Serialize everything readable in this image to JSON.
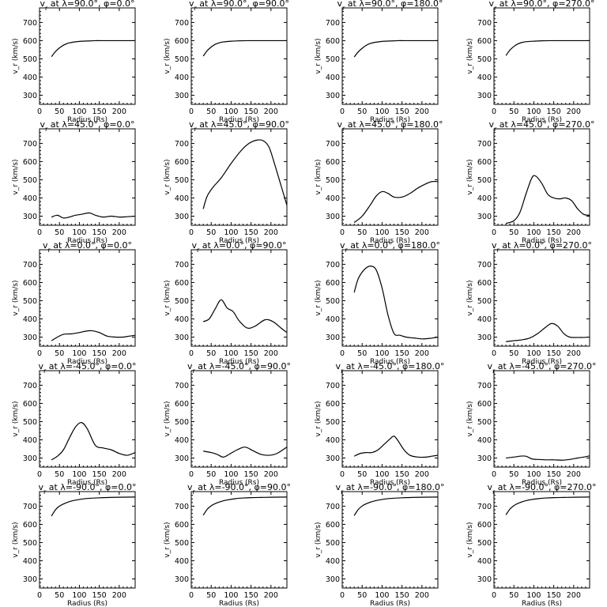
{
  "chart_data": [
    {
      "type": "line",
      "title": "v_r at λ=90.0°, φ=0.0°",
      "title_parts": {
        "v": "v",
        "sub": "r",
        "mid1": " at ",
        "lam_sym": "λ",
        "lam": "=90.0°, ",
        "phi_sym": "φ",
        "phi": "=0.0°"
      },
      "xlabel": "Radius (Rs)",
      "ylabel": "v_r (km/s)",
      "xlim": [
        0,
        240
      ],
      "ylim": [
        250,
        780
      ],
      "xticks": [
        0,
        50,
        100,
        150,
        200
      ],
      "yticks": [
        300,
        400,
        500,
        600,
        700
      ],
      "x": [
        30,
        40,
        50,
        60,
        70,
        80,
        100,
        120,
        140,
        160,
        180,
        200,
        240
      ],
      "y": [
        512,
        540,
        560,
        575,
        585,
        590,
        596,
        598,
        600,
        600,
        600,
        600,
        600
      ]
    },
    {
      "type": "line",
      "title": "v_r at λ=90.0°, φ=90.0°",
      "title_parts": {
        "v": "v",
        "sub": "r",
        "mid1": " at ",
        "lam_sym": "λ",
        "lam": "=90.0°, ",
        "phi_sym": "φ",
        "phi": "=90.0°"
      },
      "xlabel": "Radius (Rs)",
      "ylabel": "v_r (km/s)",
      "xlim": [
        0,
        240
      ],
      "ylim": [
        250,
        780
      ],
      "xticks": [
        0,
        50,
        100,
        150,
        200
      ],
      "yticks": [
        300,
        400,
        500,
        600,
        700
      ],
      "x": [
        30,
        40,
        50,
        60,
        70,
        80,
        100,
        120,
        140,
        160,
        180,
        200,
        240
      ],
      "y": [
        515,
        545,
        565,
        580,
        588,
        593,
        597,
        599,
        600,
        600,
        600,
        600,
        600
      ]
    },
    {
      "type": "line",
      "title": "v_r at λ=90.0°, φ=180.0°",
      "title_parts": {
        "v": "v",
        "sub": "r",
        "mid1": " at ",
        "lam_sym": "λ",
        "lam": "=90.0°, ",
        "phi_sym": "φ",
        "phi": "=180.0°"
      },
      "xlabel": "Radius (Rs)",
      "ylabel": "v_r (km/s)",
      "xlim": [
        0,
        240
      ],
      "ylim": [
        250,
        780
      ],
      "xticks": [
        0,
        50,
        100,
        150,
        200
      ],
      "yticks": [
        300,
        400,
        500,
        600,
        700
      ],
      "x": [
        30,
        40,
        50,
        60,
        70,
        80,
        100,
        120,
        140,
        160,
        180,
        200,
        240
      ],
      "y": [
        510,
        538,
        558,
        574,
        584,
        590,
        596,
        598,
        600,
        600,
        600,
        600,
        600
      ]
    },
    {
      "type": "line",
      "title": "v_r at λ=90.0°, φ=270.0°",
      "title_parts": {
        "v": "v",
        "sub": "r",
        "mid1": " at ",
        "lam_sym": "λ",
        "lam": "=90.0°, ",
        "phi_sym": "φ",
        "phi": "=270.0°"
      },
      "xlabel": "Radius (Rs)",
      "ylabel": "v_r (km/s)",
      "xlim": [
        0,
        240
      ],
      "ylim": [
        250,
        780
      ],
      "xticks": [
        0,
        50,
        100,
        150,
        200
      ],
      "yticks": [
        300,
        400,
        500,
        600,
        700
      ],
      "x": [
        30,
        40,
        50,
        60,
        70,
        80,
        100,
        120,
        140,
        160,
        180,
        200,
        240
      ],
      "y": [
        518,
        548,
        568,
        582,
        590,
        594,
        597,
        599,
        600,
        600,
        600,
        600,
        600
      ]
    },
    {
      "type": "line",
      "title": "v_r at λ=45.0°, φ=0.0°",
      "title_parts": {
        "v": "v",
        "sub": "r",
        "mid1": " at ",
        "lam_sym": "λ",
        "lam": "=45.0°, ",
        "phi_sym": "φ",
        "phi": "=0.0°"
      },
      "xlabel": "Radius (Rs)",
      "ylabel": "v_r (km/s)",
      "xlim": [
        0,
        240
      ],
      "ylim": [
        250,
        780
      ],
      "xticks": [
        0,
        50,
        100,
        150,
        200
      ],
      "yticks": [
        300,
        400,
        500,
        600,
        700
      ],
      "x": [
        30,
        45,
        60,
        75,
        90,
        105,
        125,
        140,
        160,
        180,
        200,
        220,
        240
      ],
      "y": [
        295,
        305,
        290,
        295,
        305,
        310,
        318,
        305,
        295,
        300,
        295,
        297,
        300
      ]
    },
    {
      "type": "line",
      "title": "v_r at λ=45.0°, φ=90.0°",
      "title_parts": {
        "v": "v",
        "sub": "r",
        "mid1": " at ",
        "lam_sym": "λ",
        "lam": "=45.0°, ",
        "phi_sym": "φ",
        "phi": "=90.0°"
      },
      "xlabel": "Radius (Rs)",
      "ylabel": "v_r (km/s)",
      "xlim": [
        0,
        240
      ],
      "ylim": [
        250,
        780
      ],
      "xticks": [
        0,
        50,
        100,
        150,
        200
      ],
      "yticks": [
        300,
        400,
        500,
        600,
        700
      ],
      "x": [
        30,
        40,
        55,
        75,
        100,
        125,
        145,
        165,
        180,
        195,
        210,
        225,
        240
      ],
      "y": [
        340,
        410,
        460,
        510,
        590,
        660,
        700,
        718,
        715,
        680,
        580,
        470,
        360
      ]
    },
    {
      "type": "line",
      "title": "v_r at λ=45.0°, φ=180.0°",
      "title_parts": {
        "v": "v",
        "sub": "r",
        "mid1": " at ",
        "lam_sym": "λ",
        "lam": "=45.0°, ",
        "phi_sym": "φ",
        "phi": "=180.0°"
      },
      "xlabel": "Radius (Rs)",
      "ylabel": "v_r (km/s)",
      "xlim": [
        0,
        240
      ],
      "ylim": [
        250,
        780
      ],
      "xticks": [
        0,
        50,
        100,
        150,
        200
      ],
      "yticks": [
        300,
        400,
        500,
        600,
        700
      ],
      "x": [
        30,
        50,
        70,
        85,
        100,
        115,
        130,
        150,
        170,
        190,
        210,
        225,
        240
      ],
      "y": [
        265,
        300,
        360,
        410,
        435,
        425,
        405,
        405,
        425,
        455,
        478,
        490,
        490
      ]
    },
    {
      "type": "line",
      "title": "v_r at λ=45.0°, φ=270.0°",
      "title_parts": {
        "v": "v",
        "sub": "r",
        "mid1": " at ",
        "lam_sym": "λ",
        "lam": "=45.0°, ",
        "phi_sym": "φ",
        "phi": "=270.0°"
      },
      "xlabel": "Radius (Rs)",
      "ylabel": "v_r (km/s)",
      "xlim": [
        0,
        240
      ],
      "ylim": [
        250,
        780
      ],
      "xticks": [
        0,
        50,
        100,
        150,
        200
      ],
      "yticks": [
        300,
        400,
        500,
        600,
        700
      ],
      "x": [
        30,
        50,
        65,
        80,
        95,
        105,
        120,
        135,
        150,
        165,
        180,
        195,
        210,
        225,
        240
      ],
      "y": [
        260,
        275,
        320,
        420,
        510,
        520,
        480,
        420,
        400,
        395,
        400,
        385,
        340,
        310,
        305
      ]
    },
    {
      "type": "line",
      "title": "v_r at λ=0.0°, φ=0.0°",
      "title_parts": {
        "v": "v",
        "sub": "r",
        "mid1": " at ",
        "lam_sym": "λ",
        "lam": "=0.0°, ",
        "phi_sym": "φ",
        "phi": "=0.0°"
      },
      "xlabel": "Radius (Rs)",
      "ylabel": "v_r (km/s)",
      "xlim": [
        0,
        240
      ],
      "ylim": [
        250,
        780
      ],
      "xticks": [
        0,
        50,
        100,
        150,
        200
      ],
      "yticks": [
        300,
        400,
        500,
        600,
        700
      ],
      "x": [
        30,
        45,
        60,
        80,
        100,
        115,
        130,
        150,
        170,
        190,
        210,
        225,
        240
      ],
      "y": [
        280,
        300,
        315,
        318,
        325,
        332,
        335,
        325,
        305,
        300,
        300,
        305,
        310
      ]
    },
    {
      "type": "line",
      "title": "v_r at λ=0.0°, φ=90.0°",
      "title_parts": {
        "v": "v",
        "sub": "r",
        "mid1": " at ",
        "lam_sym": "λ",
        "lam": "=0.0°, ",
        "phi_sym": "φ",
        "phi": "=90.0°"
      },
      "xlabel": "Radius (Rs)",
      "ylabel": "v_r (km/s)",
      "xlim": [
        0,
        240
      ],
      "ylim": [
        250,
        780
      ],
      "xticks": [
        0,
        50,
        100,
        150,
        200
      ],
      "yticks": [
        300,
        400,
        500,
        600,
        700
      ],
      "x": [
        30,
        45,
        60,
        75,
        90,
        105,
        120,
        140,
        160,
        185,
        205,
        225,
        240
      ],
      "y": [
        385,
        400,
        455,
        505,
        460,
        440,
        390,
        350,
        360,
        395,
        385,
        350,
        325
      ]
    },
    {
      "type": "line",
      "title": "v_r at λ=0.0°, φ=180.0°",
      "title_parts": {
        "v": "v",
        "sub": "r",
        "mid1": " at ",
        "lam_sym": "λ",
        "lam": "=0.0°, ",
        "phi_sym": "φ",
        "phi": "=180.0°"
      },
      "xlabel": "Radius (Rs)",
      "ylabel": "v_r (km/s)",
      "xlim": [
        0,
        240
      ],
      "ylim": [
        250,
        780
      ],
      "xticks": [
        0,
        50,
        100,
        150,
        200
      ],
      "yticks": [
        300,
        400,
        500,
        600,
        700
      ],
      "x": [
        30,
        40,
        55,
        70,
        85,
        100,
        115,
        130,
        145,
        160,
        180,
        200,
        220,
        240
      ],
      "y": [
        545,
        620,
        670,
        690,
        670,
        570,
        420,
        320,
        310,
        300,
        295,
        290,
        293,
        300
      ]
    },
    {
      "type": "line",
      "title": "v_r at λ=0.0°, φ=270.0°",
      "title_parts": {
        "v": "v",
        "sub": "r",
        "mid1": " at ",
        "lam_sym": "λ",
        "lam": "=0.0°, ",
        "phi_sym": "φ",
        "phi": "=270.0°"
      },
      "xlabel": "Radius (Rs)",
      "ylabel": "v_r (km/s)",
      "xlim": [
        0,
        240
      ],
      "ylim": [
        250,
        780
      ],
      "xticks": [
        0,
        50,
        100,
        150,
        200
      ],
      "yticks": [
        300,
        400,
        500,
        600,
        700
      ],
      "x": [
        30,
        50,
        70,
        90,
        110,
        130,
        145,
        160,
        175,
        190,
        210,
        225,
        240
      ],
      "y": [
        275,
        280,
        285,
        295,
        320,
        355,
        375,
        360,
        320,
        300,
        298,
        298,
        300
      ]
    },
    {
      "type": "line",
      "title": "v_r at λ=-45.0°, φ=0.0°",
      "title_parts": {
        "v": "v",
        "sub": "r",
        "mid1": " at ",
        "lam_sym": "λ",
        "lam": "=-45.0°, ",
        "phi_sym": "φ",
        "phi": "=0.0°"
      },
      "xlabel": "Radius (Rs)",
      "ylabel": "v_r (km/s)",
      "xlim": [
        0,
        240
      ],
      "ylim": [
        250,
        780
      ],
      "xticks": [
        0,
        50,
        100,
        150,
        200
      ],
      "yticks": [
        300,
        400,
        500,
        600,
        700
      ],
      "x": [
        30,
        45,
        60,
        75,
        90,
        105,
        120,
        140,
        160,
        180,
        200,
        220,
        240
      ],
      "y": [
        290,
        310,
        345,
        410,
        470,
        495,
        460,
        370,
        355,
        345,
        325,
        315,
        330
      ]
    },
    {
      "type": "line",
      "title": "v_r at λ=-45.0°, φ=90.0°",
      "title_parts": {
        "v": "v",
        "sub": "r",
        "mid1": " at ",
        "lam_sym": "λ",
        "lam": "=-45.0°, ",
        "phi_sym": "φ",
        "phi": "=90.0°"
      },
      "xlabel": "Radius (Rs)",
      "ylabel": "v_r (km/s)",
      "xlim": [
        0,
        240
      ],
      "ylim": [
        250,
        780
      ],
      "xticks": [
        0,
        50,
        100,
        150,
        200
      ],
      "yticks": [
        300,
        400,
        500,
        600,
        700
      ],
      "x": [
        30,
        50,
        65,
        80,
        95,
        115,
        135,
        155,
        175,
        195,
        215,
        240
      ],
      "y": [
        338,
        330,
        320,
        305,
        320,
        345,
        360,
        340,
        320,
        315,
        325,
        360
      ]
    },
    {
      "type": "line",
      "title": "v_r at λ=-45.0°, φ=180.0°",
      "title_parts": {
        "v": "v",
        "sub": "r",
        "mid1": " at ",
        "lam_sym": "λ",
        "lam": "=-45.0°, ",
        "phi_sym": "φ",
        "phi": "=180.0°"
      },
      "xlabel": "Radius (Rs)",
      "ylabel": "v_r (km/s)",
      "xlim": [
        0,
        240
      ],
      "ylim": [
        250,
        780
      ],
      "xticks": [
        0,
        50,
        100,
        150,
        200
      ],
      "yticks": [
        300,
        400,
        500,
        600,
        700
      ],
      "x": [
        30,
        45,
        60,
        75,
        90,
        105,
        120,
        130,
        140,
        155,
        170,
        190,
        210,
        225,
        240
      ],
      "y": [
        310,
        325,
        330,
        330,
        345,
        375,
        405,
        420,
        395,
        345,
        315,
        305,
        305,
        310,
        315
      ]
    },
    {
      "type": "line",
      "title": "v_r at λ=-45.0°, φ=270.0°",
      "title_parts": {
        "v": "v",
        "sub": "r",
        "mid1": " at ",
        "lam_sym": "λ",
        "lam": "=-45.0°, ",
        "phi_sym": "φ",
        "phi": "=270.0°"
      },
      "xlabel": "Radius (Rs)",
      "ylabel": "v_r (km/s)",
      "xlim": [
        0,
        240
      ],
      "ylim": [
        250,
        780
      ],
      "xticks": [
        0,
        50,
        100,
        150,
        200
      ],
      "yticks": [
        300,
        400,
        500,
        600,
        700
      ],
      "x": [
        30,
        50,
        65,
        80,
        95,
        110,
        130,
        150,
        170,
        190,
        210,
        225,
        240
      ],
      "y": [
        300,
        305,
        310,
        310,
        295,
        292,
        290,
        290,
        288,
        292,
        300,
        305,
        312
      ]
    },
    {
      "type": "line",
      "title": "v_r at λ=-90.0°, φ=0.0°",
      "title_parts": {
        "v": "v",
        "sub": "r",
        "mid1": " at ",
        "lam_sym": "λ",
        "lam": "=-90.0°, ",
        "phi_sym": "φ",
        "phi": "=0.0°"
      },
      "xlabel": "Radius (Rs)",
      "ylabel": "v_r (km/s)",
      "xlim": [
        0,
        240
      ],
      "ylim": [
        250,
        780
      ],
      "xticks": [
        0,
        50,
        100,
        150,
        200
      ],
      "yticks": [
        300,
        400,
        500,
        600,
        700
      ],
      "x": [
        30,
        40,
        50,
        60,
        75,
        90,
        110,
        130,
        150,
        175,
        200,
        240
      ],
      "y": [
        645,
        680,
        700,
        712,
        725,
        733,
        740,
        744,
        746,
        748,
        749,
        750
      ]
    },
    {
      "type": "line",
      "title": "v_r at λ=-90.0°, φ=90.0°",
      "title_parts": {
        "v": "v",
        "sub": "r",
        "mid1": " at ",
        "lam_sym": "λ",
        "lam": "=-90.0°, ",
        "phi_sym": "φ",
        "phi": "=90.0°"
      },
      "xlabel": "Radius (Rs)",
      "ylabel": "v_r (km/s)",
      "xlim": [
        0,
        240
      ],
      "ylim": [
        250,
        780
      ],
      "xticks": [
        0,
        50,
        100,
        150,
        200
      ],
      "yticks": [
        300,
        400,
        500,
        600,
        700
      ],
      "x": [
        30,
        40,
        50,
        60,
        75,
        90,
        110,
        130,
        150,
        175,
        200,
        240
      ],
      "y": [
        650,
        683,
        702,
        714,
        726,
        734,
        741,
        745,
        747,
        748,
        749,
        750
      ]
    },
    {
      "type": "line",
      "title": "v_r at λ=-90.0°, φ=180.0°",
      "title_parts": {
        "v": "v",
        "sub": "r",
        "mid1": " at ",
        "lam_sym": "λ",
        "lam": "=-90.0°, ",
        "phi_sym": "φ",
        "phi": "=180.0°"
      },
      "xlabel": "Radius (Rs)",
      "ylabel": "v_r (km/s)",
      "xlim": [
        0,
        240
      ],
      "ylim": [
        250,
        780
      ],
      "xticks": [
        0,
        50,
        100,
        150,
        200
      ],
      "yticks": [
        300,
        400,
        500,
        600,
        700
      ],
      "x": [
        30,
        40,
        50,
        60,
        75,
        90,
        110,
        130,
        150,
        175,
        200,
        240
      ],
      "y": [
        648,
        681,
        701,
        713,
        725,
        733,
        740,
        744,
        746,
        748,
        749,
        750
      ]
    },
    {
      "type": "line",
      "title": "v_r at λ=-90.0°, φ=270.0°",
      "title_parts": {
        "v": "v",
        "sub": "r",
        "mid1": " at ",
        "lam_sym": "λ",
        "lam": "=-90.0°, ",
        "phi_sym": "φ",
        "phi": "=270.0°"
      },
      "xlabel": "Radius (Rs)",
      "ylabel": "v_r (km/s)",
      "xlim": [
        0,
        240
      ],
      "ylim": [
        250,
        780
      ],
      "xticks": [
        0,
        50,
        100,
        150,
        200
      ],
      "yticks": [
        300,
        400,
        500,
        600,
        700
      ],
      "x": [
        30,
        40,
        50,
        60,
        75,
        90,
        110,
        130,
        150,
        175,
        200,
        240
      ],
      "y": [
        652,
        684,
        703,
        715,
        727,
        735,
        741,
        745,
        747,
        748,
        749,
        750
      ]
    }
  ]
}
